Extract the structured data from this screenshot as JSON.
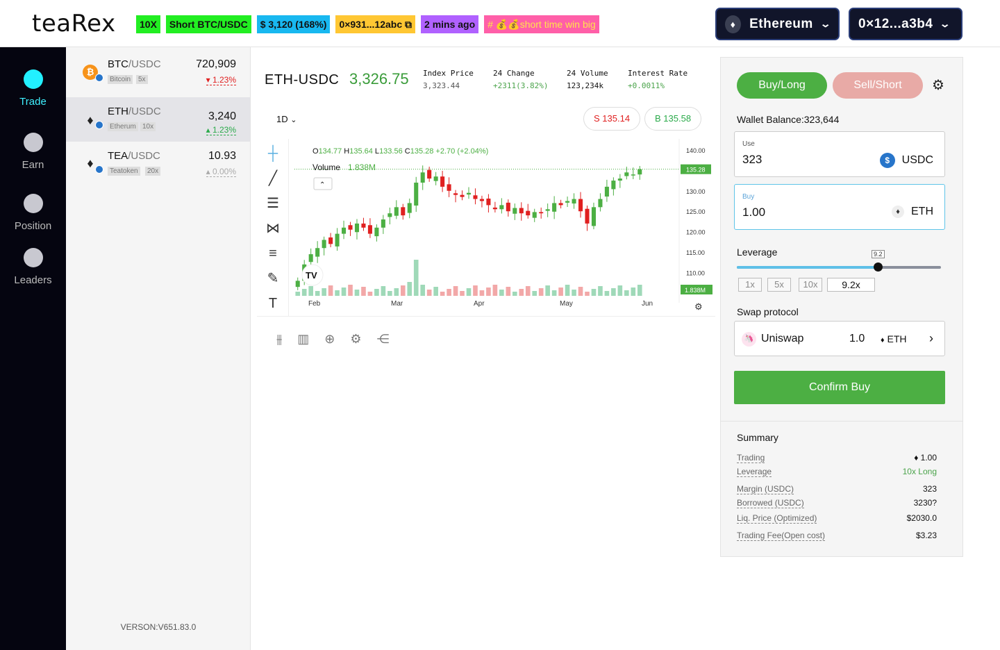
{
  "header": {
    "logo": "teaRex",
    "tags": {
      "leverage": "10X",
      "position": "Short BTC/USDC",
      "pnl": "$ 3,120 (168%)",
      "address": "0×931...12abc",
      "time": "2 mins ago",
      "promo": "# 💰💰short time win big"
    },
    "network": "Ethereum",
    "wallet": "0×12...a3b4"
  },
  "nav": [
    {
      "label": "Trade",
      "active": true
    },
    {
      "label": "Earn",
      "active": false
    },
    {
      "label": "Position",
      "active": false
    },
    {
      "label": "Leaders",
      "active": false
    }
  ],
  "pairs": [
    {
      "base": "BTC",
      "quote": "/USDC",
      "name": "Bitcoin",
      "lev": "5x",
      "price": "720,909",
      "change": "▾ 1.23%"
    },
    {
      "base": "ETH",
      "quote": "/USDC",
      "name": "Etherum",
      "lev": "10x",
      "price": "3,240",
      "change": "▴ 1.23%"
    },
    {
      "base": "TEA",
      "quote": "/USDC",
      "name": "Teatoken",
      "lev": "20x",
      "price": "10.93",
      "change": "▴ 0.00%"
    }
  ],
  "version": "VERSON:V651.83.0",
  "market": {
    "symbol": "ETH-USDC",
    "last": "3,326.75",
    "stats": [
      {
        "k": "Index Price",
        "v": "3,323.44"
      },
      {
        "k": "24 Change",
        "v": "+2311(3.82%)"
      },
      {
        "k": "24 Volume",
        "v": "123,234k"
      },
      {
        "k": "Interest Rate",
        "v": "+0.0011%"
      }
    ],
    "timeframe": "1D",
    "sell": "S 135.14",
    "buy": "B 135.58"
  },
  "chart_data": {
    "type": "candlestick",
    "ohlc_label": {
      "o": "134.77",
      "h": "135.64",
      "l": "133.56",
      "c": "135.28",
      "chg": "+2.70 (+2.04%)"
    },
    "volume_label": "Volume",
    "volume_value": "1.838M",
    "x_ticks": [
      "Feb",
      "Mar",
      "Apr",
      "May",
      "Jun"
    ],
    "y_ticks": [
      "140.00",
      "135.00",
      "130.00",
      "125.00",
      "120.00",
      "115.00",
      "110.00"
    ],
    "ylim": [
      105,
      141
    ],
    "last_price_tag": "135.28",
    "volume_tag": "1.838M",
    "closes": [
      108,
      112,
      114.5,
      116,
      118,
      117,
      119.5,
      121,
      120.5,
      122,
      121,
      119.5,
      121,
      123,
      124.5,
      126,
      124,
      127,
      132,
      134.5,
      133,
      133.5,
      131,
      130,
      129,
      128.5,
      129.5,
      128,
      127.5,
      126.5,
      125.5,
      126.5,
      125,
      125.8,
      124.5,
      124,
      124.8,
      124.5,
      125.5,
      127,
      126.5,
      127.5,
      128,
      125,
      122,
      126,
      128,
      131,
      132.5,
      133,
      134.5,
      134,
      135.28
    ]
  },
  "order": {
    "buy_label": "Buy/Long",
    "sell_label": "Sell/Short",
    "wallet_balance": "Wallet Balance:323,644",
    "use_label": "Use",
    "use_value": "323",
    "use_token": "USDC",
    "buy_field_label": "Buy",
    "buy_value": "1.00",
    "buy_token": "ETH",
    "leverage_label": "Leverage",
    "leverage_bubble": "9.2",
    "leverage_value": "9.2x",
    "leverage_fraction": 0.69,
    "presets": [
      "1x",
      "5x",
      "10x"
    ],
    "swap_label": "Swap protocol",
    "swap_name": "Uniswap",
    "swap_amount": "1.0",
    "swap_token": "ETH",
    "confirm": "Confirm Buy"
  },
  "summary": {
    "title": "Summary",
    "rows": [
      {
        "k": "Trading",
        "v": "♦ 1.00"
      },
      {
        "k": "Leverage",
        "v": "10x Long"
      },
      {
        "k": "Margin (USDC)",
        "v": "323"
      },
      {
        "k": "Borrowed (USDC)",
        "v": "3230?"
      },
      {
        "k": "Liq. Price (Optimized)",
        "v": "$2030.0"
      },
      {
        "k": "Trading Fee(Open cost)",
        "v": "$3.23"
      }
    ]
  },
  "colors": {
    "up": "#4caf43",
    "down": "#e02020",
    "accent": "#22f0ff"
  }
}
